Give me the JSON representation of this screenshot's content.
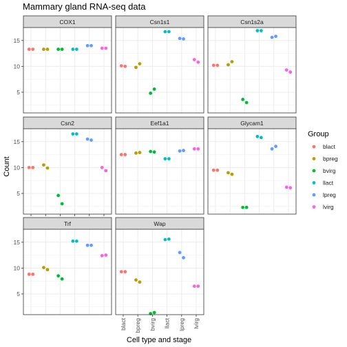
{
  "colors": {
    "blact": "#F8766D",
    "bpreg": "#B79F00",
    "bvirg": "#00BA38",
    "llact": "#00BFC4",
    "lpreg": "#619CFF",
    "lvirg": "#F564E3",
    "panel_bg": "#ffffff",
    "strip_bg": "#d9d9d9",
    "grid": "#ebebeb",
    "border": "#333333"
  },
  "chart_data": {
    "type": "scatter",
    "title": "Mammary gland RNA-seq data",
    "xlabel": "Cell type and stage",
    "ylabel": "Count",
    "categories": [
      "blact",
      "bpreg",
      "bvirg",
      "llact",
      "lpreg",
      "lvirg"
    ],
    "ylim": [
      1.0,
      17.5
    ],
    "yticks": [
      5,
      10,
      15
    ],
    "grid": true,
    "legend": {
      "title": "Group",
      "position": "right",
      "entries": [
        "blact",
        "bpreg",
        "bvirg",
        "llact",
        "lpreg",
        "lvirg"
      ]
    },
    "panels": [
      {
        "name": "COX1",
        "points": [
          {
            "group": "blact",
            "values": [
              13.3,
              13.3
            ]
          },
          {
            "group": "bpreg",
            "values": [
              13.3,
              13.3
            ]
          },
          {
            "group": "bvirg",
            "values": [
              13.3,
              13.3
            ]
          },
          {
            "group": "llact",
            "values": [
              13.3,
              13.3
            ]
          },
          {
            "group": "lpreg",
            "values": [
              14.0,
              14.0
            ]
          },
          {
            "group": "lvirg",
            "values": [
              13.5,
              13.5
            ]
          }
        ]
      },
      {
        "name": "Csn1s1",
        "points": [
          {
            "group": "blact",
            "values": [
              10.1,
              10.0
            ]
          },
          {
            "group": "bpreg",
            "values": [
              9.8,
              10.5
            ]
          },
          {
            "group": "bvirg",
            "values": [
              4.8,
              5.6
            ]
          },
          {
            "group": "llact",
            "values": [
              16.7,
              16.7
            ]
          },
          {
            "group": "lpreg",
            "values": [
              15.4,
              15.3
            ]
          },
          {
            "group": "lvirg",
            "values": [
              11.3,
              10.8
            ]
          }
        ]
      },
      {
        "name": "Csn1s2a",
        "points": [
          {
            "group": "blact",
            "values": [
              10.2,
              10.2
            ]
          },
          {
            "group": "bpreg",
            "values": [
              10.3,
              10.9
            ]
          },
          {
            "group": "bvirg",
            "values": [
              3.6,
              3.0
            ]
          },
          {
            "group": "llact",
            "values": [
              16.9,
              16.9
            ]
          },
          {
            "group": "lpreg",
            "values": [
              15.6,
              15.8
            ]
          },
          {
            "group": "lvirg",
            "values": [
              9.3,
              8.9
            ]
          }
        ]
      },
      {
        "name": "Csn2",
        "points": [
          {
            "group": "blact",
            "values": [
              10.0,
              10.0
            ]
          },
          {
            "group": "bpreg",
            "values": [
              10.5,
              9.9
            ]
          },
          {
            "group": "bvirg",
            "values": [
              4.6,
              3.0
            ]
          },
          {
            "group": "llact",
            "values": [
              16.5,
              16.5
            ]
          },
          {
            "group": "lpreg",
            "values": [
              15.5,
              15.3
            ]
          },
          {
            "group": "lvirg",
            "values": [
              10.0,
              9.4
            ]
          }
        ]
      },
      {
        "name": "Eef1a1",
        "points": [
          {
            "group": "blact",
            "values": [
              12.5,
              12.5
            ]
          },
          {
            "group": "bpreg",
            "values": [
              12.8,
              12.9
            ]
          },
          {
            "group": "bvirg",
            "values": [
              13.1,
              13.0
            ]
          },
          {
            "group": "llact",
            "values": [
              11.7,
              11.7
            ]
          },
          {
            "group": "lpreg",
            "values": [
              13.2,
              13.3
            ]
          },
          {
            "group": "lvirg",
            "values": [
              13.6,
              13.6
            ]
          }
        ]
      },
      {
        "name": "Glycam1",
        "points": [
          {
            "group": "blact",
            "values": [
              9.5,
              9.5
            ]
          },
          {
            "group": "bpreg",
            "values": [
              9.0,
              8.7
            ]
          },
          {
            "group": "bvirg",
            "values": [
              2.3,
              2.3
            ]
          },
          {
            "group": "llact",
            "values": [
              16.0,
              15.8
            ]
          },
          {
            "group": "lpreg",
            "values": [
              13.6,
              14.1
            ]
          },
          {
            "group": "lvirg",
            "values": [
              6.2,
              6.1
            ]
          }
        ]
      },
      {
        "name": "Trf",
        "points": [
          {
            "group": "blact",
            "values": [
              8.8,
              8.8
            ]
          },
          {
            "group": "bpreg",
            "values": [
              10.1,
              9.7
            ]
          },
          {
            "group": "bvirg",
            "values": [
              8.5,
              7.9
            ]
          },
          {
            "group": "llact",
            "values": [
              15.2,
              15.2
            ]
          },
          {
            "group": "lpreg",
            "values": [
              14.4,
              14.4
            ]
          },
          {
            "group": "lvirg",
            "values": [
              12.4,
              12.5
            ]
          }
        ]
      },
      {
        "name": "Wap",
        "points": [
          {
            "group": "blact",
            "values": [
              9.3,
              9.3
            ]
          },
          {
            "group": "bpreg",
            "values": [
              7.7,
              7.3
            ]
          },
          {
            "group": "bvirg",
            "values": [
              1.2,
              1.4
            ]
          },
          {
            "group": "llact",
            "values": [
              15.5,
              15.6
            ]
          },
          {
            "group": "lpreg",
            "values": [
              13.0,
              12.0
            ]
          },
          {
            "group": "lvirg",
            "values": [
              6.5,
              6.5
            ]
          }
        ]
      }
    ]
  }
}
